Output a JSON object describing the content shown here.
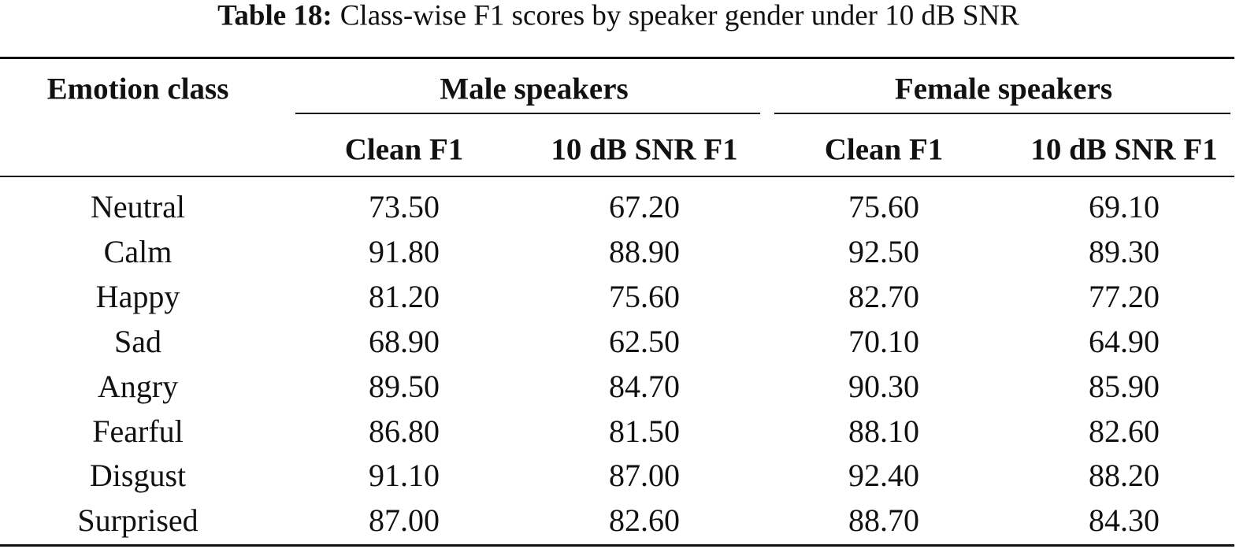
{
  "caption": {
    "label": "Table 18:",
    "text": "Class-wise F1 scores by speaker gender under 10 dB SNR"
  },
  "table": {
    "header": {
      "row_label": "Emotion class",
      "groups": [
        "Male speakers",
        "Female speakers"
      ],
      "columns": [
        "Clean F1",
        "10 dB SNR F1",
        "Clean F1",
        "10 dB SNR F1"
      ]
    },
    "rows": [
      [
        "Neutral",
        "73.50",
        "67.20",
        "75.60",
        "69.10"
      ],
      [
        "Calm",
        "91.80",
        "88.90",
        "92.50",
        "89.30"
      ],
      [
        "Happy",
        "81.20",
        "75.60",
        "82.70",
        "77.20"
      ],
      [
        "Sad",
        "68.90",
        "62.50",
        "70.10",
        "64.90"
      ],
      [
        "Angry",
        "89.50",
        "84.70",
        "90.30",
        "85.90"
      ],
      [
        "Fearful",
        "86.80",
        "81.50",
        "88.10",
        "82.60"
      ],
      [
        "Disgust",
        "91.10",
        "87.00",
        "92.40",
        "88.20"
      ],
      [
        "Surprised",
        "87.00",
        "82.60",
        "88.70",
        "84.30"
      ]
    ]
  }
}
